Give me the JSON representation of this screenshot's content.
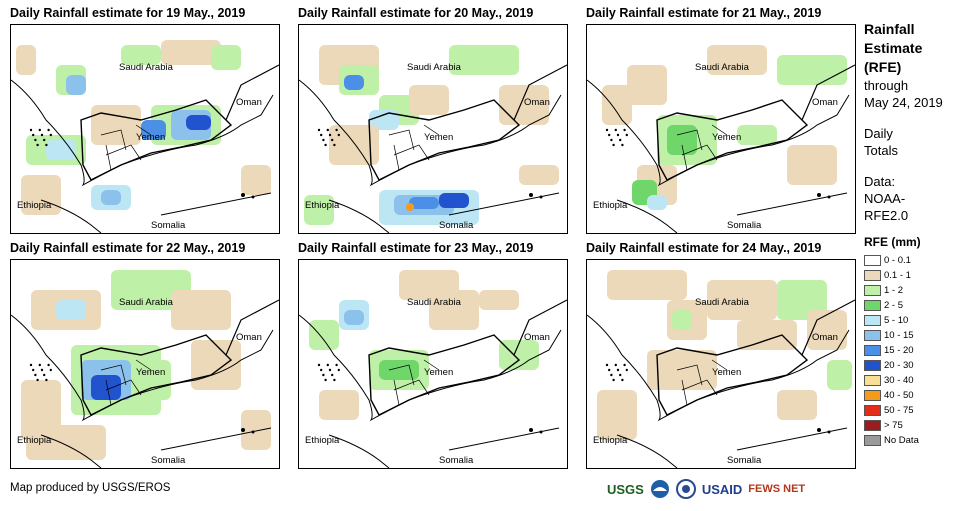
{
  "panels": [
    {
      "title": "Daily Rainfall estimate for 19 May., 2019"
    },
    {
      "title": "Daily Rainfall estimate for 20 May., 2019"
    },
    {
      "title": "Daily Rainfall estimate for 21 May., 2019"
    },
    {
      "title": "Daily Rainfall estimate for 22 May., 2019"
    },
    {
      "title": "Daily Rainfall estimate for 23 May., 2019"
    },
    {
      "title": "Daily Rainfall estimate for 24 May., 2019"
    }
  ],
  "map_labels": {
    "saudi": "Saudi Arabia",
    "oman": "Oman",
    "yemen": "Yemen",
    "ethiopia": "Ethiopia",
    "somalia": "Somalia"
  },
  "legend": {
    "title_lines": [
      "Rainfall",
      "Estimate",
      "(RFE)"
    ],
    "through": "through",
    "date": "May 24, 2019",
    "daily": "Daily",
    "totals": "Totals",
    "data_label": "Data:",
    "data_src1": "NOAA-",
    "data_src2": "RFE2.0",
    "units": "RFE (mm)",
    "classes": [
      {
        "label": "0 - 0.1",
        "color": "#ffffff"
      },
      {
        "label": "0.1 - 1",
        "color": "#ecd9b9"
      },
      {
        "label": "1 - 2",
        "color": "#bff0a8"
      },
      {
        "label": "2 - 5",
        "color": "#6fd66a"
      },
      {
        "label": "5 - 10",
        "color": "#bde6f4"
      },
      {
        "label": "10 - 15",
        "color": "#8cc1eb"
      },
      {
        "label": "15 - 20",
        "color": "#4b8fe6"
      },
      {
        "label": "20 - 30",
        "color": "#2253cf"
      },
      {
        "label": "30 - 40",
        "color": "#f9df93"
      },
      {
        "label": "40 - 50",
        "color": "#f39b1a"
      },
      {
        "label": "50 - 75",
        "color": "#e42c1b"
      },
      {
        "label": "> 75",
        "color": "#9b1c1c"
      },
      {
        "label": "No Data",
        "color": "#9a9a9a"
      }
    ]
  },
  "credit": "Map produced by USGS/EROS",
  "logos": [
    "USGS",
    "USAID",
    "FEWS NET"
  ]
}
